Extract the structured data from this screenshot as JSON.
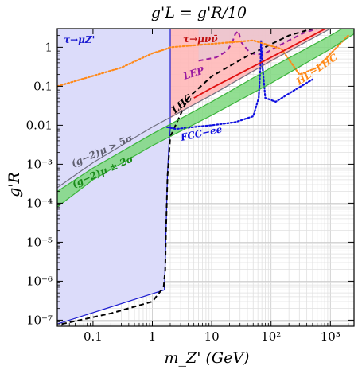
{
  "chart_data": {
    "type": "line",
    "title": "g'L = g'R/10",
    "xlabel": "m_Z' (GeV)",
    "ylabel": "g'R",
    "x_scale": "log",
    "y_scale": "log",
    "xlim": [
      0.025,
      2500
    ],
    "ylim": [
      7e-08,
      3
    ],
    "grid": true,
    "x_ticks": [
      {
        "value": 0.1,
        "label": "0.1"
      },
      {
        "value": 1,
        "label": "1"
      },
      {
        "value": 10,
        "label": "10"
      },
      {
        "value": 100,
        "label": "10²"
      },
      {
        "value": 1000,
        "label": "10³"
      }
    ],
    "y_ticks": [
      {
        "value": 1e-07,
        "label": "10⁻⁷"
      },
      {
        "value": 1e-06,
        "label": "10⁻⁶"
      },
      {
        "value": 1e-05,
        "label": "10⁻⁵"
      },
      {
        "value": 0.0001,
        "label": "10⁻⁴"
      },
      {
        "value": 0.001,
        "label": "10⁻³"
      },
      {
        "value": 0.01,
        "label": "0.01"
      },
      {
        "value": 0.1,
        "label": "0.1"
      },
      {
        "value": 1,
        "label": "1"
      }
    ],
    "colors": {
      "tau_muZ_fill": "#dcdcfa",
      "tau_mununu_fill": "#ffb8b8",
      "lep_fill": "#e8c8d4",
      "g2_band": "#3cb43c",
      "g2_band_fill": "#7fd87f",
      "lep": "#9a1aa0",
      "lhc": "#000000",
      "red_line": "#e01010",
      "fcc": "#1010e0",
      "hl_lhc": "#ff8a1a",
      "gray_line": "#707080",
      "blue_boundary": "#1a1ad0"
    },
    "series": [
      {
        "name": "τ→μZ'",
        "style": "region",
        "color": "#1a1ad0",
        "x": [
          0.025,
          1.6,
          1.62,
          1.65,
          1.7,
          1.75,
          1.8,
          1.9,
          2.0,
          2.0,
          0.025
        ],
        "y": [
          8e-08,
          6e-07,
          1.2e-06,
          3e-06,
          2e-05,
          0.0001,
          0.0006,
          0.003,
          0.008,
          3,
          3
        ]
      },
      {
        "name": "τ→μνν̄",
        "style": "region",
        "color": "#ffb8b8",
        "x": [
          2.0,
          1000,
          1000,
          2.0
        ],
        "y": [
          0.015,
          3,
          3,
          3
        ]
      },
      {
        "name": "LEP",
        "style": "dashed",
        "color": "#9a1aa0",
        "x": [
          6,
          12,
          18,
          22,
          25,
          28,
          32,
          45,
          60,
          80,
          120,
          200,
          350,
          600
        ],
        "y": [
          0.45,
          0.55,
          0.8,
          1.3,
          2.2,
          2.6,
          1.3,
          0.7,
          0.65,
          0.7,
          1.0,
          1.5,
          2.3,
          3
        ]
      },
      {
        "name": "LHC",
        "style": "dashed",
        "color": "#000000",
        "x": [
          0.03,
          0.2,
          1.0,
          1.55,
          1.65,
          1.7,
          1.8,
          2.0,
          4,
          10,
          40,
          100,
          200,
          500
        ],
        "y": [
          8e-08,
          1.5e-07,
          3e-07,
          7e-07,
          2e-06,
          2e-05,
          0.0005,
          0.005,
          0.05,
          0.18,
          0.6,
          1.2,
          2.0,
          3
        ]
      },
      {
        "name": "FCC-ee",
        "style": "dotted",
        "color": "#1010e0",
        "x": [
          1.75,
          2.5,
          5,
          10,
          25,
          50,
          62,
          66,
          68,
          72,
          80,
          120,
          250,
          500
        ],
        "y": [
          0.009,
          0.008,
          0.009,
          0.01,
          0.012,
          0.017,
          0.05,
          0.3,
          1.5,
          0.3,
          0.05,
          0.04,
          0.08,
          0.15
        ]
      },
      {
        "name": "HL-LHC",
        "style": "dotted",
        "color": "#ff8a1a",
        "x": [
          0.025,
          0.3,
          1.0,
          1.7,
          2.0,
          50,
          150,
          300,
          600,
          1200,
          2000
        ],
        "y": [
          0.1,
          0.3,
          0.7,
          0.9,
          1.0,
          1.5,
          0.9,
          0.2,
          0.3,
          0.9,
          2.0
        ]
      },
      {
        "name": "(g-2)μ ± 2σ upper",
        "style": "solid",
        "color": "#3cb43c",
        "x": [
          0.025,
          0.1,
          1,
          10,
          100,
          1000,
          2500
        ],
        "y": [
          0.0002,
          0.0008,
          0.006,
          0.04,
          0.3,
          2.0,
          4.5
        ]
      },
      {
        "name": "(g-2)μ ± 2σ lower",
        "style": "solid",
        "color": "#3cb43c",
        "x": [
          0.025,
          0.1,
          1,
          10,
          100,
          1000,
          2500
        ],
        "y": [
          8e-05,
          0.0004,
          0.003,
          0.018,
          0.12,
          0.9,
          2.2
        ]
      },
      {
        "name": "(g-2)μ > 5σ",
        "style": "solid",
        "color": "#707080",
        "x": [
          0.025,
          0.1,
          1,
          10,
          100,
          1000,
          2500
        ],
        "y": [
          0.00025,
          0.0011,
          0.009,
          0.06,
          0.45,
          3.0,
          6.0
        ]
      },
      {
        "name": "red",
        "style": "solid",
        "color": "#e01010",
        "x": [
          5,
          10,
          100,
          1000,
          2500
        ],
        "y": [
          0.05,
          0.09,
          0.55,
          3.5,
          7.0
        ]
      }
    ],
    "annotations": [
      {
        "text": "τ→μZ'",
        "color": "#1a1ad0"
      },
      {
        "text": "τ→μνν̄",
        "color": "#c01010"
      },
      {
        "text": "LEP",
        "color": "#9a1aa0"
      },
      {
        "text": "LHC",
        "color": "#000000"
      },
      {
        "text": "FCC−ee",
        "color": "#1010e0"
      },
      {
        "text": "HL−LHC",
        "color": "#ff8a1a"
      },
      {
        "text": "(g−2)μ > 5σ",
        "color": "#606070"
      },
      {
        "text": "(g−2)μ ± 2σ",
        "color": "#1a8a1a"
      }
    ]
  }
}
